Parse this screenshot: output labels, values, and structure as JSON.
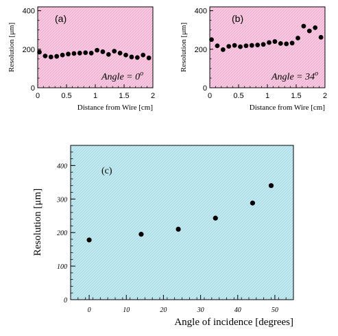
{
  "chart_data": [
    {
      "id": "a",
      "type": "scatter",
      "panel_label": "(a)",
      "annotation": "Angle = 0",
      "annotation_sup": "o",
      "xlabel": "Distance from Wire [cm]",
      "ylabel": "Resolution [μm]",
      "xlim": [
        0,
        2
      ],
      "ylim": [
        0,
        420
      ],
      "xticks": [
        0,
        0.5,
        1,
        1.5,
        2
      ],
      "xtick_labels": [
        "0",
        "0.5",
        "1",
        "1.5",
        "2"
      ],
      "yticks": [
        0,
        200,
        400
      ],
      "ytick_labels": [
        "0",
        "200",
        "400"
      ],
      "background": "#f7c8e0",
      "x": [
        0.03,
        0.13,
        0.23,
        0.33,
        0.43,
        0.53,
        0.63,
        0.73,
        0.83,
        0.93,
        1.03,
        1.13,
        1.23,
        1.33,
        1.43,
        1.53,
        1.63,
        1.73,
        1.83,
        1.93
      ],
      "y": [
        185,
        165,
        160,
        163,
        170,
        175,
        178,
        180,
        182,
        180,
        195,
        187,
        173,
        190,
        180,
        170,
        160,
        157,
        170,
        155
      ]
    },
    {
      "id": "b",
      "type": "scatter",
      "panel_label": "(b)",
      "annotation": "Angle = 34",
      "annotation_sup": "o",
      "xlabel": "Distance from Wire [cm]",
      "ylabel": "Resolution [μm]",
      "xlim": [
        0,
        2
      ],
      "ylim": [
        0,
        420
      ],
      "xticks": [
        0,
        0.5,
        1,
        1.5,
        2
      ],
      "xtick_labels": [
        "0",
        "0.5",
        "1",
        "1.5",
        "2"
      ],
      "yticks": [
        0,
        200,
        400
      ],
      "ytick_labels": [
        "0",
        "200",
        "400"
      ],
      "background": "#f7c8e0",
      "x": [
        0.03,
        0.13,
        0.23,
        0.33,
        0.43,
        0.53,
        0.63,
        0.73,
        0.83,
        0.93,
        1.03,
        1.13,
        1.23,
        1.33,
        1.43,
        1.53,
        1.63,
        1.73,
        1.83,
        1.93
      ],
      "y": [
        250,
        218,
        198,
        215,
        220,
        213,
        218,
        220,
        222,
        225,
        235,
        240,
        230,
        228,
        232,
        258,
        320,
        295,
        312,
        262
      ]
    },
    {
      "id": "c",
      "type": "scatter",
      "panel_label": "(c)",
      "xlabel": "Angle of incidence  [degrees]",
      "ylabel": "Resolution [μm]",
      "xlim": [
        -5,
        55
      ],
      "ylim": [
        0,
        460
      ],
      "xticks": [
        0,
        10,
        20,
        30,
        40,
        50
      ],
      "xtick_labels": [
        "0",
        "10",
        "20",
        "30",
        "40",
        "50"
      ],
      "yticks": [
        0,
        100,
        200,
        300,
        400
      ],
      "ytick_labels": [
        "0",
        "100",
        "200",
        "300",
        "400"
      ],
      "background": "#c4e8f0",
      "x": [
        0,
        14,
        24,
        34,
        44,
        49
      ],
      "y": [
        178,
        195,
        210,
        243,
        288,
        340
      ]
    }
  ]
}
